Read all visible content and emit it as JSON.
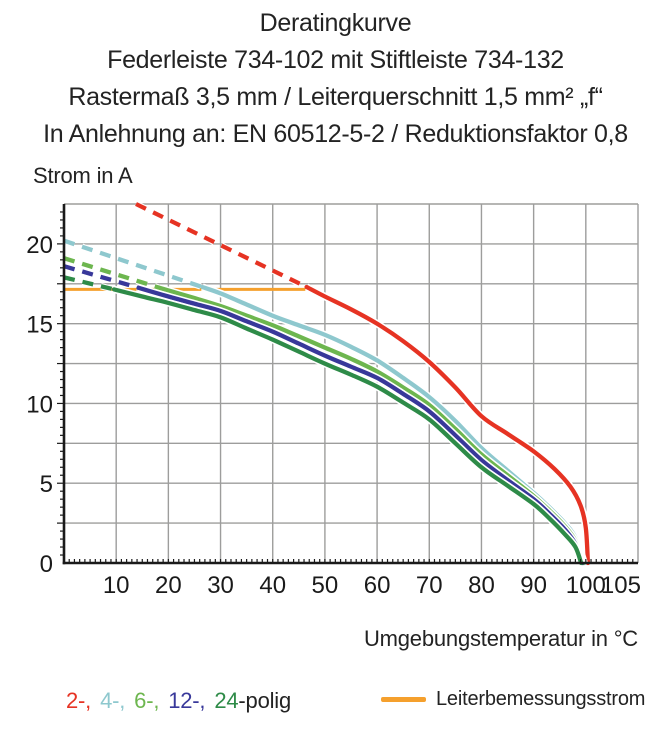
{
  "title": {
    "lines": [
      "Deratingkurve",
      "Federleiste 734-102 mit Stiftleiste 734-132",
      "Rastermaß 3,5 mm / Leiterquerschnitt 1,5 mm² „f“",
      "In Anlehnung an: EN 60512-5-2 / Reduktionsfaktor 0,8"
    ]
  },
  "chart_data": {
    "type": "line",
    "xlabel": "Umgebungstemperatur in °C",
    "ylabel": "Strom in A",
    "xlim": [
      0,
      110
    ],
    "ylim": [
      0,
      22.5
    ],
    "x_major_ticks": [
      10,
      20,
      30,
      40,
      50,
      60,
      70,
      80,
      90,
      100,
      105
    ],
    "y_major_ticks": [
      0,
      5,
      10,
      15,
      20
    ],
    "x_grid_step": 10,
    "y_grid_step": 2.5,
    "x_minor_step": 1,
    "y_minor_step": 0.5,
    "grid": true,
    "grid_color": "#9d9d9c",
    "axis_color": "#1a1a1a",
    "rated_current_line": {
      "label": "Leiterbemessungsstrom",
      "value": 17.15,
      "x_start": 0,
      "x_end": 46.8,
      "color": "#F5A02D"
    },
    "series": [
      {
        "name": "2-polig",
        "color": "#E63323",
        "dashed": [
          [
            13.8,
            22.5
          ],
          [
            46.5,
            17.3
          ]
        ],
        "solid": [
          [
            46.5,
            17.3
          ],
          [
            50,
            16.7
          ],
          [
            55,
            15.9
          ],
          [
            60,
            15.0
          ],
          [
            65,
            13.9
          ],
          [
            70,
            12.6
          ],
          [
            75,
            11.0
          ],
          [
            80,
            9.2
          ],
          [
            85,
            8.1
          ],
          [
            90,
            7.0
          ],
          [
            94,
            5.9
          ],
          [
            97,
            4.8
          ],
          [
            99,
            3.6
          ],
          [
            100,
            2.2
          ],
          [
            100.4,
            0
          ]
        ]
      },
      {
        "name": "4-polig",
        "color": "#8EC8CE",
        "dashed": [
          [
            0,
            20.2
          ],
          [
            26.5,
            17.3
          ]
        ],
        "solid": [
          [
            26.5,
            17.3
          ],
          [
            30,
            16.9
          ],
          [
            35,
            16.2
          ],
          [
            40,
            15.5
          ],
          [
            45,
            14.9
          ],
          [
            50,
            14.3
          ],
          [
            55,
            13.55
          ],
          [
            60,
            12.7
          ],
          [
            65,
            11.6
          ],
          [
            70,
            10.4
          ],
          [
            75,
            8.9
          ],
          [
            80,
            7.2
          ],
          [
            85,
            5.8
          ],
          [
            90,
            4.4
          ],
          [
            93,
            3.5
          ],
          [
            96,
            2.5
          ],
          [
            98,
            1.6
          ],
          [
            99.7,
            0
          ]
        ]
      },
      {
        "name": "6-polig",
        "color": "#6DB64F",
        "dashed": [
          [
            0,
            19.1
          ],
          [
            18.3,
            17.25
          ]
        ],
        "solid": [
          [
            18.3,
            17.25
          ],
          [
            25,
            16.6
          ],
          [
            30,
            16.1
          ],
          [
            35,
            15.5
          ],
          [
            40,
            14.9
          ],
          [
            45,
            14.2
          ],
          [
            50,
            13.5
          ],
          [
            55,
            12.8
          ],
          [
            60,
            12.0
          ],
          [
            65,
            11.0
          ],
          [
            70,
            9.9
          ],
          [
            75,
            8.4
          ],
          [
            80,
            6.8
          ],
          [
            85,
            5.5
          ],
          [
            90,
            4.2
          ],
          [
            93,
            3.3
          ],
          [
            96,
            2.3
          ],
          [
            98,
            1.4
          ],
          [
            99.5,
            0
          ]
        ]
      },
      {
        "name": "12-polig",
        "color": "#38389A",
        "dashed": [
          [
            0,
            18.6
          ],
          [
            14.3,
            17.25
          ]
        ],
        "solid": [
          [
            14.3,
            17.25
          ],
          [
            20,
            16.7
          ],
          [
            25,
            16.25
          ],
          [
            30,
            15.8
          ],
          [
            35,
            15.15
          ],
          [
            40,
            14.5
          ],
          [
            45,
            13.75
          ],
          [
            50,
            13.0
          ],
          [
            55,
            12.3
          ],
          [
            60,
            11.6
          ],
          [
            65,
            10.6
          ],
          [
            70,
            9.5
          ],
          [
            75,
            8.0
          ],
          [
            80,
            6.45
          ],
          [
            85,
            5.2
          ],
          [
            90,
            4.0
          ],
          [
            93,
            3.1
          ],
          [
            96,
            2.1
          ],
          [
            98,
            1.2
          ],
          [
            99.3,
            0
          ]
        ]
      },
      {
        "name": "24-polig",
        "color": "#2E8B48",
        "dashed": [
          [
            0,
            17.9
          ],
          [
            9.6,
            17.15
          ]
        ],
        "solid": [
          [
            9.6,
            17.15
          ],
          [
            15,
            16.7
          ],
          [
            20,
            16.3
          ],
          [
            25,
            15.85
          ],
          [
            30,
            15.4
          ],
          [
            35,
            14.7
          ],
          [
            40,
            14.0
          ],
          [
            45,
            13.25
          ],
          [
            50,
            12.5
          ],
          [
            55,
            11.8
          ],
          [
            60,
            11.05
          ],
          [
            65,
            10.05
          ],
          [
            70,
            9.0
          ],
          [
            75,
            7.5
          ],
          [
            80,
            6.0
          ],
          [
            85,
            4.85
          ],
          [
            90,
            3.7
          ],
          [
            93,
            2.8
          ],
          [
            96,
            1.8
          ],
          [
            98,
            1.0
          ],
          [
            99.1,
            0
          ]
        ]
      }
    ]
  },
  "legend": {
    "poles": [
      {
        "text": "2-,",
        "color": "#E63323"
      },
      {
        "text": "4-,",
        "color": "#8EC8CE"
      },
      {
        "text": "6-,",
        "color": "#6DB64F"
      },
      {
        "text": "12-,",
        "color": "#38389A"
      },
      {
        "text": "24",
        "color": "#2E8B48"
      },
      {
        "text": "-polig",
        "color": "#232323"
      }
    ],
    "rated_label": "Leiterbemessungsstrom"
  }
}
